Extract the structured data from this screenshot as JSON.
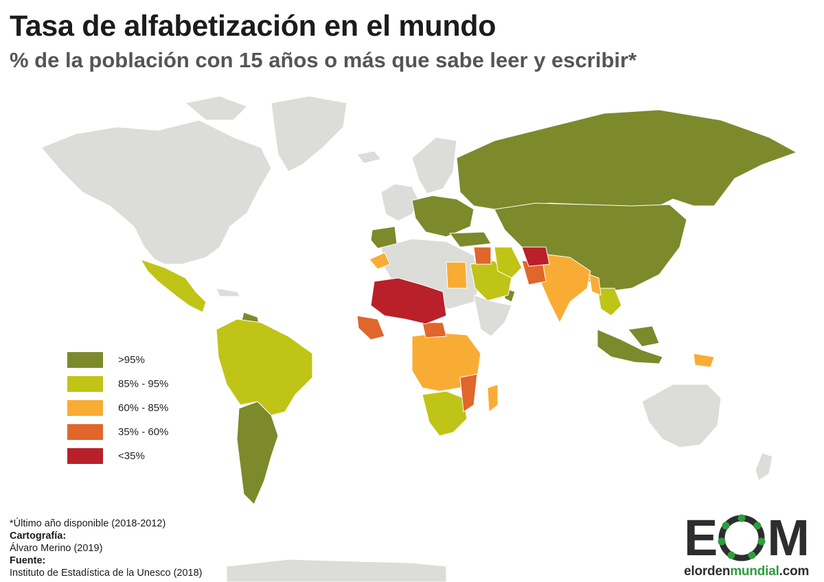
{
  "title": "Tasa de alfabetización en el mundo",
  "subtitle": "% de la población con 15 años o más que sabe leer y escribir*",
  "legend": [
    {
      "label": ">95%",
      "color": "#7c8a2c"
    },
    {
      "label": "85% - 95%",
      "color": "#c0c416"
    },
    {
      "label": "60% - 85%",
      "color": "#f9ac33"
    },
    {
      "label": "35% - 60%",
      "color": "#e0662b"
    },
    {
      "label": "<35%",
      "color": "#b9202a"
    }
  ],
  "no_data_color": "#dcdcd8",
  "ocean_color": "#ffffff",
  "footer": {
    "note": "*Último año disponible (2018-2012)",
    "cartography_label": "Cartografía:",
    "cartography_value": "Álvaro Merino (2019)",
    "source_label": "Fuente:",
    "source_value": "Instituto de Estadística de la Unesco (2018)"
  },
  "logo": {
    "letter_e": "E",
    "letter_m": "M",
    "url_prefix": "elorden",
    "url_accent": "mundial",
    "url_suffix": ".com",
    "accent_color": "#2e9d3c"
  }
}
